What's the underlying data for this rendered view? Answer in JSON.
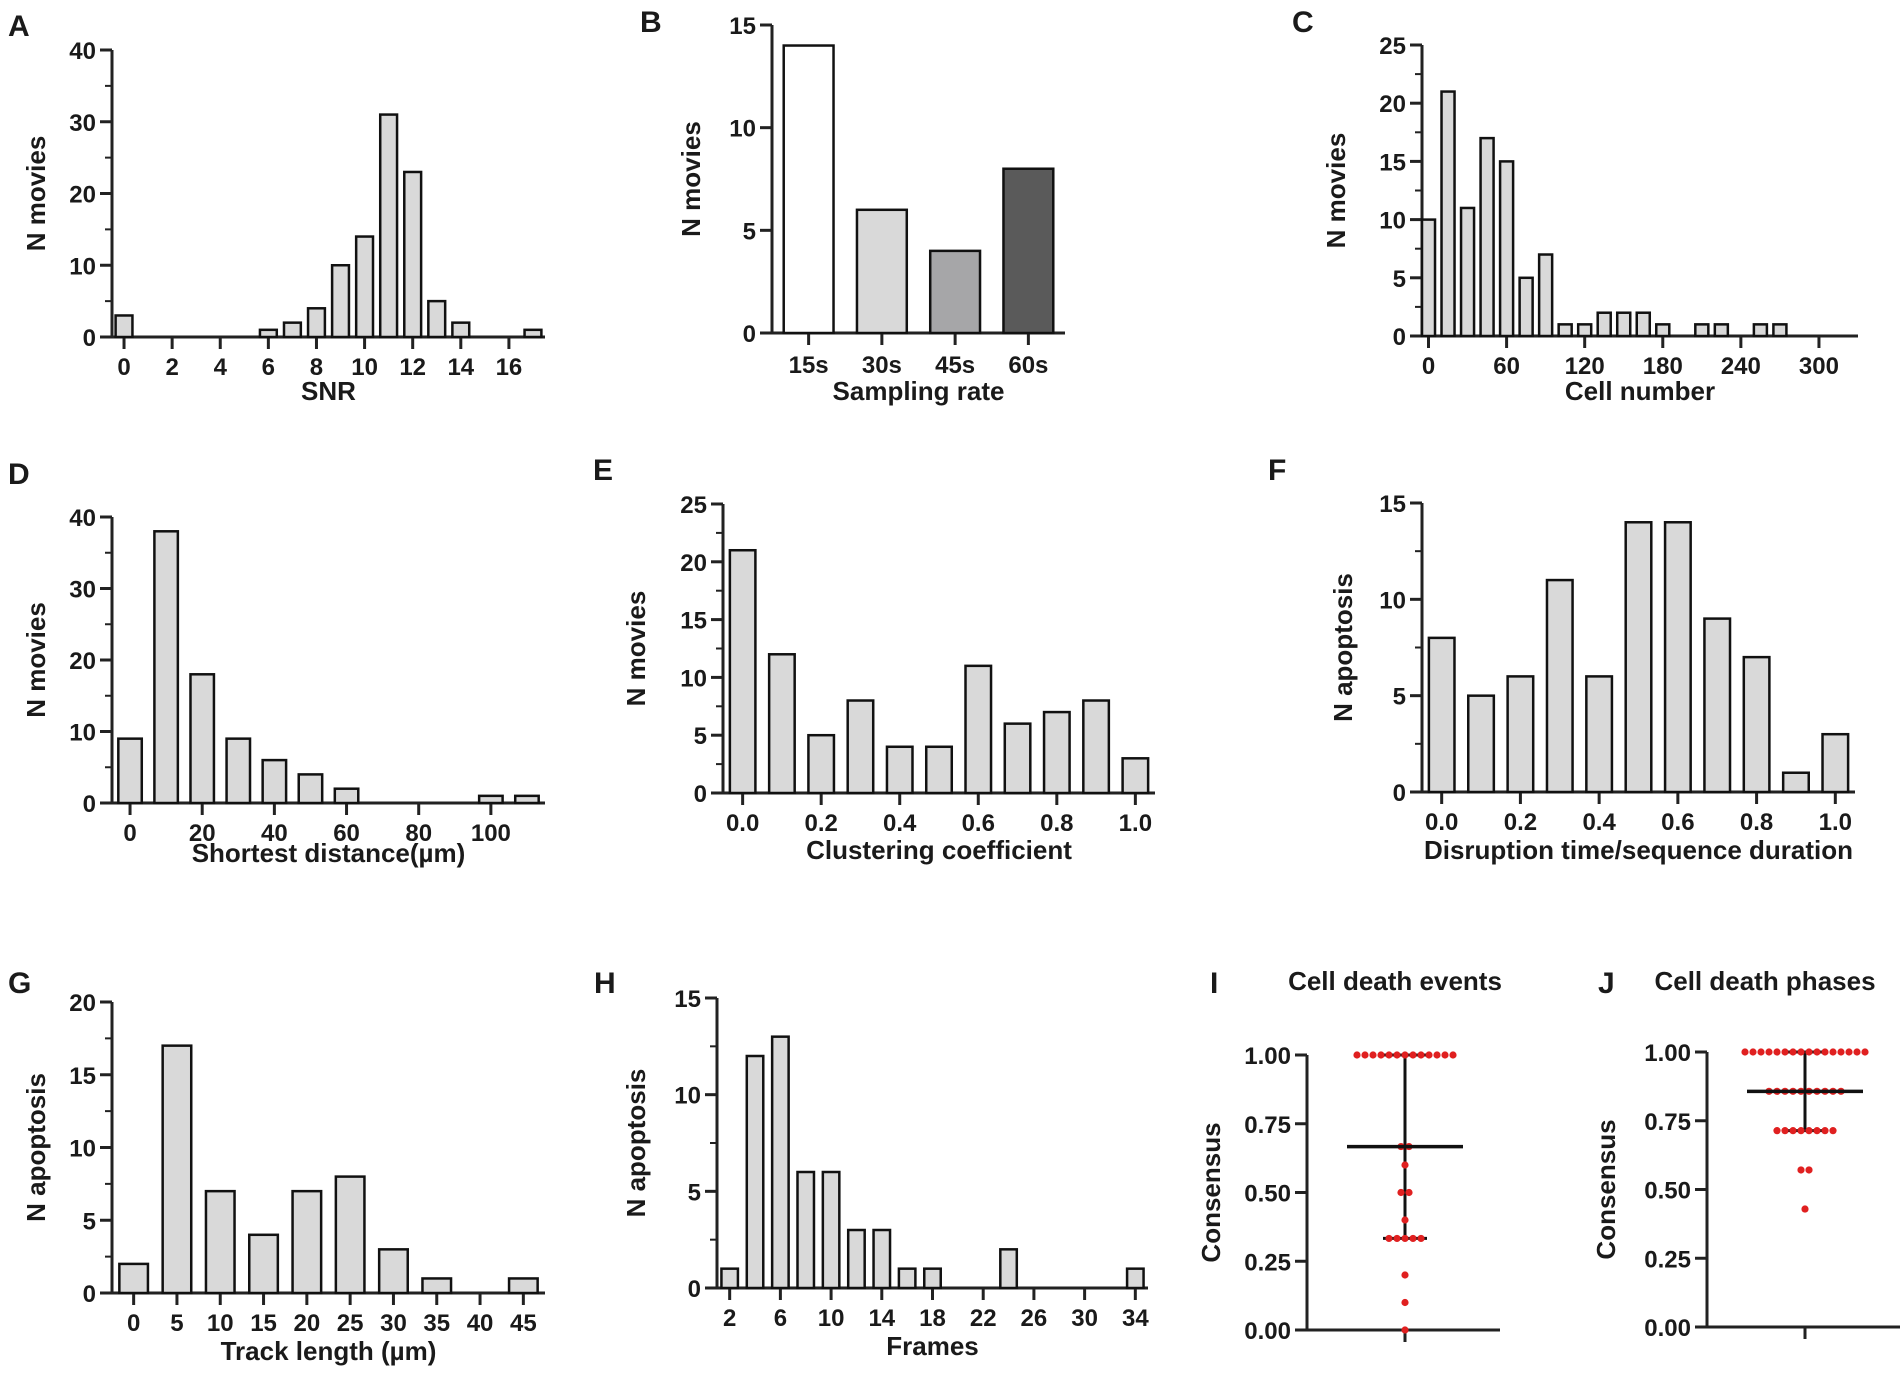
{
  "figure": {
    "chart_data": [
      {
        "panel": "A",
        "type": "bar",
        "xlabel": "SNR",
        "ylabel": "N movies",
        "ylim": [
          0,
          40
        ],
        "yticks": [
          0,
          10,
          20,
          30,
          40
        ],
        "ytick_labels": [
          "0",
          "10",
          "20",
          "30",
          "40"
        ],
        "xlim": [
          -0.5,
          17.5
        ],
        "xticks": [
          0,
          2,
          4,
          6,
          8,
          10,
          12,
          14,
          16
        ],
        "xtick_labels": [
          "0",
          "2",
          "4",
          "6",
          "8",
          "10",
          "12",
          "14",
          "16"
        ],
        "bar_width": 0.7,
        "x": [
          0,
          6,
          7,
          8,
          9,
          10,
          11,
          12,
          13,
          14,
          17
        ],
        "values": [
          3,
          1,
          2,
          4,
          10,
          14,
          31,
          23,
          5,
          2,
          1
        ],
        "fill": "#d9d9d9"
      },
      {
        "panel": "B",
        "type": "bar",
        "xlabel": "Sampling rate",
        "ylabel": "N movies",
        "ylim": [
          0,
          15
        ],
        "yticks": [
          0,
          5,
          10,
          15
        ],
        "ytick_labels": [
          "0",
          "5",
          "10",
          "15"
        ],
        "categories": [
          "15s",
          "30s",
          "45s",
          "60s"
        ],
        "values": [
          14,
          6,
          4,
          8
        ],
        "colors": [
          "#ffffff",
          "#d9d9d9",
          "#a6a6a8",
          "#5a5a5a"
        ]
      },
      {
        "panel": "C",
        "type": "bar",
        "xlabel": "Cell number",
        "ylabel": "N movies",
        "ylim": [
          0,
          25
        ],
        "yticks": [
          0,
          5,
          10,
          15,
          20,
          25
        ],
        "ytick_labels": [
          "0",
          "5",
          "10",
          "15",
          "20",
          "25"
        ],
        "xlim": [
          -5,
          330
        ],
        "xticks": [
          0,
          60,
          120,
          180,
          240,
          300
        ],
        "xtick_labels": [
          "0",
          "60",
          "120",
          "180",
          "240",
          "300"
        ],
        "bar_width": 10,
        "x": [
          0,
          15,
          30,
          45,
          60,
          75,
          90,
          105,
          120,
          135,
          150,
          165,
          180,
          210,
          225,
          255,
          270
        ],
        "values": [
          10,
          21,
          11,
          17,
          15,
          5,
          7,
          1,
          1,
          2,
          2,
          2,
          1,
          1,
          1,
          1,
          1
        ],
        "fill": "#d9d9d9"
      },
      {
        "panel": "D",
        "type": "bar",
        "xlabel": "Shortest distance(µm)",
        "ylabel": "N movies",
        "ylim": [
          0,
          40
        ],
        "yticks": [
          0,
          10,
          20,
          30,
          40
        ],
        "ytick_labels": [
          "0",
          "10",
          "20",
          "30",
          "40"
        ],
        "xlim": [
          -5,
          115
        ],
        "xticks": [
          0,
          20,
          40,
          60,
          80,
          100
        ],
        "xtick_labels": [
          "0",
          "20",
          "40",
          "60",
          "80",
          "100"
        ],
        "bar_width": 6.5,
        "x": [
          0,
          10,
          20,
          30,
          40,
          50,
          60,
          100,
          110
        ],
        "values": [
          9,
          38,
          18,
          9,
          6,
          4,
          2,
          1,
          1
        ],
        "fill": "#d9d9d9"
      },
      {
        "panel": "E",
        "type": "bar",
        "xlabel": "Clustering coefficient",
        "ylabel": "N movies",
        "ylim": [
          0,
          25
        ],
        "yticks": [
          0,
          5,
          10,
          15,
          20,
          25
        ],
        "ytick_labels": [
          "0",
          "5",
          "10",
          "15",
          "20",
          "25"
        ],
        "xlim": [
          -0.05,
          1.05
        ],
        "xticks": [
          0,
          0.2,
          0.4,
          0.6,
          0.8,
          1.0
        ],
        "xtick_labels": [
          "0.0",
          "0.2",
          "0.4",
          "0.6",
          "0.8",
          "1.0"
        ],
        "bar_width": 0.065,
        "x": [
          0.0,
          0.1,
          0.2,
          0.3,
          0.4,
          0.5,
          0.6,
          0.7,
          0.8,
          0.9,
          1.0
        ],
        "values": [
          21,
          12,
          5,
          8,
          4,
          4,
          11,
          6,
          7,
          8,
          3
        ],
        "fill": "#d9d9d9"
      },
      {
        "panel": "F",
        "type": "bar",
        "xlabel": "Disruption time/sequence duration",
        "ylabel": "N apoptosis",
        "ylim": [
          0,
          15
        ],
        "yticks": [
          0,
          5,
          10,
          15
        ],
        "ytick_labels": [
          "0",
          "5",
          "10",
          "15"
        ],
        "xlim": [
          -0.05,
          1.05
        ],
        "xticks": [
          0,
          0.2,
          0.4,
          0.6,
          0.8,
          1.0
        ],
        "xtick_labels": [
          "0.0",
          "0.2",
          "0.4",
          "0.6",
          "0.8",
          "1.0"
        ],
        "bar_width": 0.065,
        "x": [
          0.0,
          0.1,
          0.2,
          0.3,
          0.4,
          0.5,
          0.6,
          0.7,
          0.8,
          0.9,
          1.0
        ],
        "values": [
          8,
          5,
          6,
          11,
          6,
          14,
          14,
          9,
          7,
          1,
          3
        ],
        "fill": "#d9d9d9"
      },
      {
        "panel": "G",
        "type": "bar",
        "xlabel": "Track length (µm)",
        "ylabel": "N apoptosis",
        "ylim": [
          0,
          20
        ],
        "yticks": [
          0,
          5,
          10,
          15,
          20
        ],
        "ytick_labels": [
          "0",
          "5",
          "10",
          "15",
          "20"
        ],
        "xlim": [
          -2.5,
          47.5
        ],
        "xticks": [
          0,
          5,
          10,
          15,
          20,
          25,
          30,
          35,
          40,
          45
        ],
        "xtick_labels": [
          "0",
          "5",
          "10",
          "15",
          "20",
          "25",
          "30",
          "35",
          "40",
          "45"
        ],
        "bar_width": 3.3,
        "x": [
          0,
          5,
          10,
          15,
          20,
          25,
          30,
          35,
          45
        ],
        "values": [
          2,
          17,
          7,
          4,
          7,
          8,
          3,
          1,
          1
        ],
        "fill": "#d9d9d9"
      },
      {
        "panel": "H",
        "type": "bar",
        "xlabel": "Frames",
        "ylabel": "N apoptosis",
        "ylim": [
          0,
          15
        ],
        "yticks": [
          0,
          5,
          10,
          15
        ],
        "ytick_labels": [
          "0",
          "5",
          "10",
          "15"
        ],
        "xlim": [
          1,
          35
        ],
        "xticks": [
          2,
          6,
          10,
          14,
          18,
          22,
          26,
          30,
          34
        ],
        "xtick_labels": [
          "2",
          "6",
          "10",
          "14",
          "18",
          "22",
          "26",
          "30",
          "34"
        ],
        "bar_width": 1.3,
        "x": [
          2,
          4,
          6,
          8,
          10,
          12,
          14,
          16,
          18,
          24,
          34
        ],
        "values": [
          1,
          12,
          13,
          6,
          6,
          3,
          3,
          1,
          1,
          2,
          1
        ],
        "fill": "#d9d9d9"
      },
      {
        "panel": "I",
        "type": "scatter",
        "title": "Cell death events",
        "ylabel": "Consensus",
        "ylim": [
          0,
          1
        ],
        "yticks": [
          0,
          0.25,
          0.5,
          0.75,
          1.0
        ],
        "ytick_labels": [
          "0.00",
          "0.25",
          "0.50",
          "0.75",
          "1.00"
        ],
        "points": [
          {
            "y": 1.0,
            "count": 13
          },
          {
            "y": 0.667,
            "count": 2
          },
          {
            "y": 0.6,
            "count": 1
          },
          {
            "y": 0.5,
            "count": 2
          },
          {
            "y": 0.4,
            "count": 1
          },
          {
            "y": 0.333,
            "count": 5
          },
          {
            "y": 0.2,
            "count": 1
          },
          {
            "y": 0.1,
            "count": 1
          },
          {
            "y": 0.0,
            "count": 1
          }
        ],
        "mean": 0.667,
        "sd_low": 0.333,
        "sd_high": 1.0,
        "point_color": "#e02020"
      },
      {
        "panel": "J",
        "type": "scatter",
        "title": "Cell death phases",
        "ylabel": "Consensus",
        "ylim": [
          0,
          1
        ],
        "yticks": [
          0,
          0.25,
          0.5,
          0.75,
          1.0
        ],
        "ytick_labels": [
          "0.00",
          "0.25",
          "0.50",
          "0.75",
          "1.00"
        ],
        "points": [
          {
            "y": 1.0,
            "count": 16
          },
          {
            "y": 0.857,
            "count": 10
          },
          {
            "y": 0.714,
            "count": 8
          },
          {
            "y": 0.571,
            "count": 2
          },
          {
            "y": 0.429,
            "count": 1
          }
        ],
        "mean": 0.857,
        "sd_low": 0.714,
        "sd_high": 1.0,
        "point_color": "#e02020"
      }
    ]
  }
}
